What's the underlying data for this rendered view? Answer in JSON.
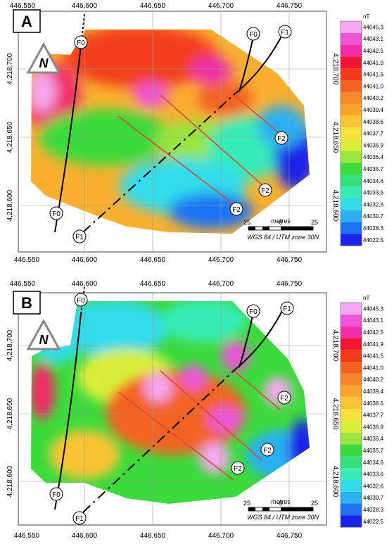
{
  "panels": [
    {
      "id": "A",
      "scale": {
        "unit": "metres",
        "left": "25",
        "mid": "0",
        "right": "25",
        "crs": "WGS 84 / UTM zone 30N"
      }
    },
    {
      "id": "B",
      "scale": {
        "unit": "metres",
        "left": "25",
        "mid": "0",
        "right": "25",
        "crs": "WGS 84 / UTM zone 30N"
      }
    }
  ],
  "axes": {
    "x_ticks": [
      "446,550",
      "446,600",
      "446,650",
      "446,700",
      "446,750"
    ],
    "y_ticks": [
      "4,218,700",
      "4,218,650",
      "4,218,600"
    ]
  },
  "north_label": "N",
  "fault_labels": {
    "f0": "F0",
    "f1": "F1",
    "f2": "F2"
  },
  "legend": {
    "unit": "nT",
    "values": [
      "44045.3",
      "44043.1",
      "44042.5",
      "44041.9",
      "44041.5",
      "44041.0",
      "44040.2",
      "44039.4",
      "44038.6",
      "44037.7",
      "44036.9",
      "44036.4",
      "44035.7",
      "44034.6",
      "44033.6",
      "44032.6",
      "44030.7",
      "44028.3",
      "44022.5"
    ],
    "colors": [
      "#f5a7ef",
      "#ee55d8",
      "#ef2ea8",
      "#f01633",
      "#f13a1b",
      "#f36420",
      "#f7882a",
      "#f9a52c",
      "#f8c434",
      "#f4e33c",
      "#d9ef3a",
      "#98e33d",
      "#3bdb3b",
      "#35e07d",
      "#38ecb7",
      "#30dcea",
      "#2bb0f2",
      "#1d72f4",
      "#1a22e8"
    ]
  }
}
